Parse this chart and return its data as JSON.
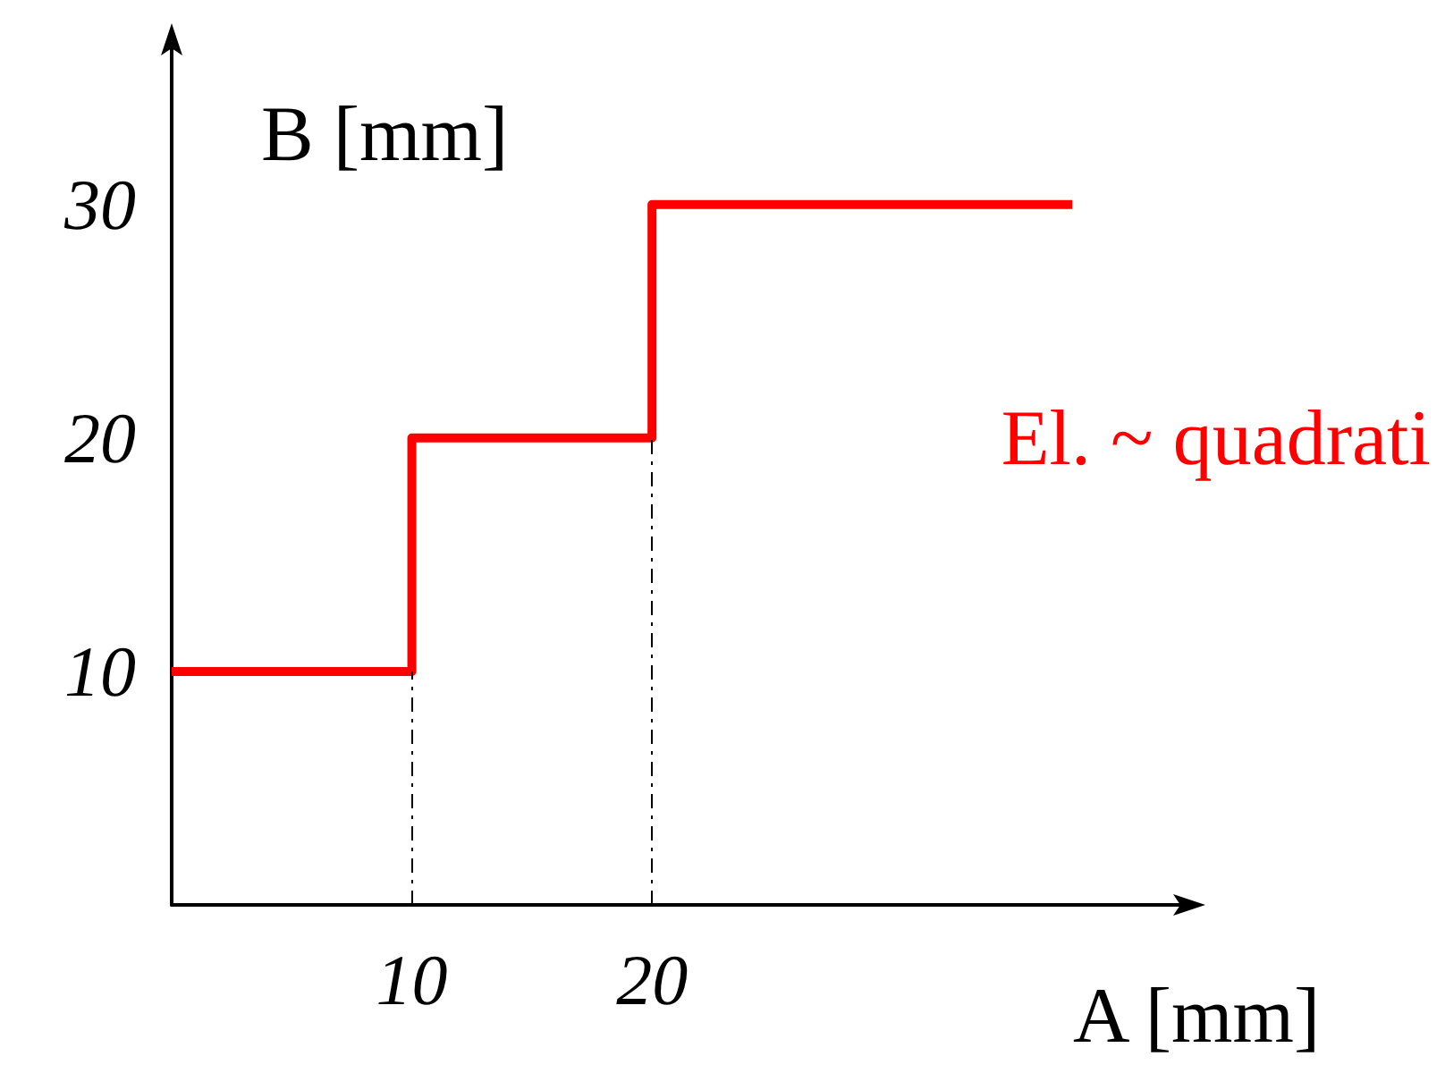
{
  "chart_data": {
    "type": "step",
    "xlabel": "A [mm]",
    "ylabel": "B [mm]",
    "x": [
      0,
      10,
      20,
      37.5
    ],
    "series": [
      {
        "name": "El. ~ quadrati",
        "color": "#ff0000",
        "values": [
          10,
          20,
          30,
          30
        ]
      }
    ],
    "xlim": [
      0,
      42
    ],
    "ylim": [
      0,
      37
    ],
    "xticks": [
      10,
      20
    ],
    "yticks": [
      10,
      20,
      30
    ],
    "ref_lines": [
      {
        "axis": "x",
        "value": 10,
        "color": "#000000",
        "line_style": "dashdot"
      },
      {
        "axis": "x",
        "value": 20,
        "color": "#000000",
        "line_style": "dashdot"
      }
    ],
    "grid": false,
    "legend": false,
    "marker": "none",
    "line_style": "solid"
  }
}
